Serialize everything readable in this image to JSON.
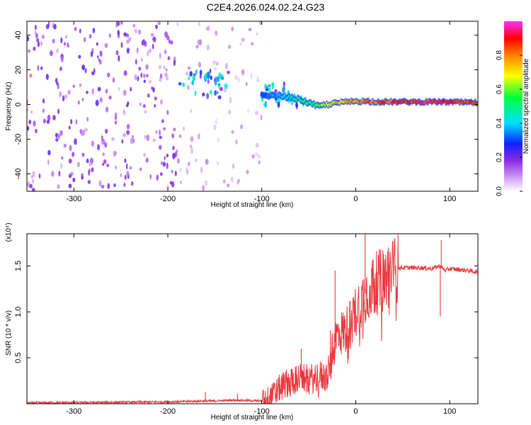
{
  "title": "C2E4.2026.024.02.24.G23",
  "chart_data": [
    {
      "type": "heatmap",
      "xlabel": "Height of straight line (km)",
      "ylabel": "Frequency (Hz)",
      "xlim": [
        -350,
        130
      ],
      "ylim": [
        -50,
        48
      ],
      "x_ticks": [
        -300,
        -200,
        -100,
        0,
        100
      ],
      "y_ticks": [
        -40,
        -20,
        0,
        20,
        40
      ],
      "colorbar": {
        "label": "Normalized spectral amplitude",
        "range": [
          0,
          1
        ],
        "ticks": [
          "0.0",
          "0.2",
          "0.4",
          "0.6",
          "0.8"
        ]
      },
      "regions": [
        {
          "name": "broadband_noise",
          "x": [
            -350,
            -190
          ],
          "freq": [
            -50,
            48
          ],
          "amplitude": 0.12
        },
        {
          "name": "broadband_noise_gap",
          "x": [
            -190,
            -100
          ],
          "freq": [
            -50,
            48
          ],
          "amplitude": 0.06
        },
        {
          "name": "signal_cluster",
          "x": [
            -188,
            -135
          ],
          "freq": [
            4,
            20
          ],
          "amplitude": 0.3
        },
        {
          "name": "signal_start",
          "x": [
            -100,
            -55
          ],
          "freq": [
            -2,
            12
          ],
          "amplitude": 0.35
        }
      ],
      "tone": [
        {
          "x": -100,
          "freq": 5,
          "amp": 0.3
        },
        {
          "x": -80,
          "freq": 5,
          "amp": 0.4
        },
        {
          "x": -60,
          "freq": 3,
          "amp": 0.5
        },
        {
          "x": -40,
          "freq": -1,
          "amp": 0.6
        },
        {
          "x": -20,
          "freq": 1,
          "amp": 0.75
        },
        {
          "x": 0,
          "freq": 2,
          "amp": 0.8
        },
        {
          "x": 30,
          "freq": 1.5,
          "amp": 0.85
        },
        {
          "x": 60,
          "freq": 1.5,
          "amp": 0.9
        },
        {
          "x": 90,
          "freq": 1.5,
          "amp": 0.92
        },
        {
          "x": 130,
          "freq": 1,
          "amp": 0.88
        }
      ]
    },
    {
      "type": "line",
      "xlabel": "Height of straight line (km)",
      "ylabel": "SNR (10 * v/v)",
      "y_multiplier": "(x10⁴)",
      "xlim": [
        -350,
        130
      ],
      "ylim": [
        0,
        1.85
      ],
      "x_ticks": [
        -300,
        -200,
        -100,
        0,
        100
      ],
      "y_ticks": [
        0.5,
        1,
        1.5
      ],
      "y_tick_labels": [
        "0.5",
        "1.0",
        "1.5"
      ],
      "series": [
        {
          "color": "#e8383d",
          "x": [
            -350,
            -200,
            -160,
            -150,
            -130,
            -100,
            -90,
            -80,
            -70,
            -60,
            -50,
            -40,
            -30,
            -25,
            -20,
            -10,
            0,
            10,
            20,
            30,
            40,
            45,
            50,
            60,
            70,
            80,
            90,
            95,
            100,
            110,
            120,
            130
          ],
          "y": [
            0.01,
            0.02,
            0.03,
            0.03,
            0.04,
            0.03,
            0.08,
            0.18,
            0.25,
            0.28,
            0.26,
            0.3,
            0.3,
            0.55,
            0.75,
            0.8,
            1.0,
            1.2,
            1.3,
            1.35,
            1.45,
            1.48,
            1.48,
            1.48,
            1.48,
            1.47,
            1.5,
            1.45,
            1.47,
            1.46,
            1.45,
            1.43
          ]
        }
      ],
      "spikes": [
        {
          "x": -160,
          "y": 0.13
        },
        {
          "x": -126,
          "y": 0.11
        },
        {
          "x": -58,
          "y": 0.6
        },
        {
          "x": -27,
          "y": 0.8
        },
        {
          "x": -22,
          "y": 1.45
        },
        {
          "x": 10,
          "y": 1.85
        },
        {
          "x": 35,
          "y": 1.7
        },
        {
          "x": 90,
          "y": 0.95
        },
        {
          "x": 91,
          "y": 1.78
        }
      ]
    }
  ]
}
